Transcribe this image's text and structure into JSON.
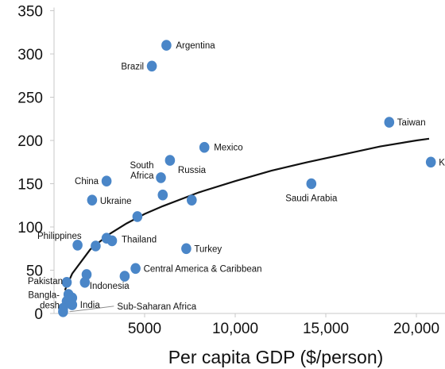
{
  "chart_data": {
    "type": "scatter",
    "title": "",
    "xlabel": "Per capita GDP ($/person)",
    "ylabel": "",
    "xlim": [
      0,
      22700
    ],
    "ylim": [
      0,
      350
    ],
    "x_ticks": [
      5000,
      10000,
      15000,
      20000
    ],
    "x_tick_labels": [
      "5000",
      "10,000",
      "15,000",
      "20,000"
    ],
    "y_ticks": [
      0,
      50,
      100,
      150,
      200,
      250,
      300,
      350
    ],
    "y_tick_labels": [
      "0",
      "50",
      "100",
      "150",
      "200",
      "250",
      "300",
      "350"
    ],
    "grid": false,
    "point_color": "#4a86c8",
    "points": [
      {
        "label": "Argentina",
        "x": 6200,
        "y": 310
      },
      {
        "label": "Brazil",
        "x": 5400,
        "y": 286
      },
      {
        "label": "Taiwan",
        "x": 18500,
        "y": 221
      },
      {
        "label": "Korea",
        "x": 20800,
        "y": 175
      },
      {
        "label": "Mexico",
        "x": 8300,
        "y": 192
      },
      {
        "label": "Russia",
        "x": 6400,
        "y": 177
      },
      {
        "label": "South Africa",
        "x": 5900,
        "y": 157
      },
      {
        "label": "China",
        "x": 2900,
        "y": 153
      },
      {
        "label": "Saudi Arabia",
        "x": 14200,
        "y": 150
      },
      {
        "label": "Ukraine",
        "x": 2100,
        "y": 131
      },
      {
        "label": "",
        "x": 6000,
        "y": 137
      },
      {
        "label": "",
        "x": 7600,
        "y": 131
      },
      {
        "label": "",
        "x": 4600,
        "y": 112
      },
      {
        "label": "Philippines",
        "x": 1300,
        "y": 79
      },
      {
        "label": "Thailand",
        "x": 3200,
        "y": 84
      },
      {
        "label": "",
        "x": 2900,
        "y": 87
      },
      {
        "label": "",
        "x": 2300,
        "y": 78
      },
      {
        "label": "Turkey",
        "x": 7300,
        "y": 75
      },
      {
        "label": "Central America & Caribbean",
        "x": 4500,
        "y": 52
      },
      {
        "label": "",
        "x": 3900,
        "y": 43
      },
      {
        "label": "",
        "x": 1800,
        "y": 45
      },
      {
        "label": "Pakistan",
        "x": 700,
        "y": 36
      },
      {
        "label": "Indonesia",
        "x": 1700,
        "y": 36
      },
      {
        "label": "",
        "x": 800,
        "y": 22
      },
      {
        "label": "",
        "x": 1000,
        "y": 18
      },
      {
        "label": "Bangla-desh",
        "x": 700,
        "y": 14
      },
      {
        "label": "India",
        "x": 1000,
        "y": 10
      },
      {
        "label": "",
        "x": 500,
        "y": 6
      },
      {
        "label": "Sub-Saharan Africa",
        "x": 500,
        "y": 2
      }
    ],
    "trend_curve": [
      {
        "x": 600,
        "y": 27
      },
      {
        "x": 1000,
        "y": 46
      },
      {
        "x": 2000,
        "y": 74
      },
      {
        "x": 3000,
        "y": 91
      },
      {
        "x": 4000,
        "y": 104
      },
      {
        "x": 5000,
        "y": 115
      },
      {
        "x": 6000,
        "y": 124
      },
      {
        "x": 8000,
        "y": 140
      },
      {
        "x": 10000,
        "y": 153
      },
      {
        "x": 12000,
        "y": 165
      },
      {
        "x": 14000,
        "y": 175
      },
      {
        "x": 16000,
        "y": 184
      },
      {
        "x": 18000,
        "y": 193
      },
      {
        "x": 20000,
        "y": 200
      },
      {
        "x": 20700,
        "y": 202
      }
    ]
  }
}
